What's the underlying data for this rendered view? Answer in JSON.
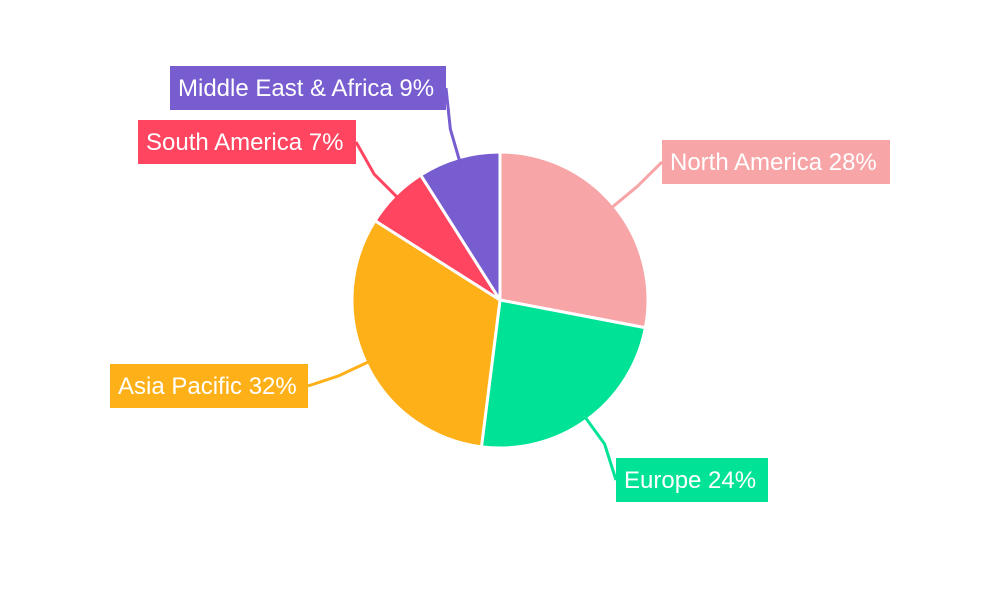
{
  "chart_data": {
    "type": "pie",
    "start_angle_deg": 0,
    "direction": "clockwise",
    "slices": [
      {
        "label": "North America",
        "value": 28,
        "text": "North America 28%",
        "color": "#f7a5a7"
      },
      {
        "label": "Europe",
        "value": 24,
        "text": "Europe 24%",
        "color": "#00e396"
      },
      {
        "label": "Asia Pacific",
        "value": 32,
        "text": "Asia Pacific 32%",
        "color": "#feb019"
      },
      {
        "label": "South America",
        "value": 7,
        "text": "South America 7%",
        "color": "#ff4560"
      },
      {
        "label": "Middle East & Africa",
        "value": 9,
        "text": "Middle East & Africa 9%",
        "color": "#775dd0"
      }
    ]
  }
}
